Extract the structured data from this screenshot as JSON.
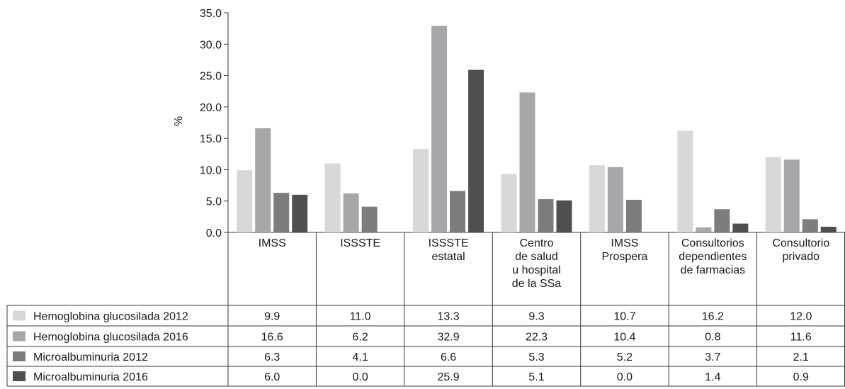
{
  "chart_data": {
    "type": "bar",
    "ylabel": "%",
    "ylim": [
      0,
      35
    ],
    "yticks": [
      "0.0",
      "5.0",
      "10.0",
      "15.0",
      "20.0",
      "25.0",
      "30.0",
      "35.0"
    ],
    "grid": false,
    "legend": "data-table",
    "categories": [
      [
        "IMSS"
      ],
      [
        "ISSSTE"
      ],
      [
        "ISSSTE",
        "estatal"
      ],
      [
        "Centro",
        "de salud",
        "u hospital",
        "de la SSa"
      ],
      [
        "IMSS",
        "Prospera"
      ],
      [
        "Consultorios",
        "dependientes",
        "de farmacias"
      ],
      [
        "Consultorio",
        "privado"
      ]
    ],
    "series": [
      {
        "name": "Hemoglobina glucosilada 2012",
        "color": "#d8d8d8",
        "values": [
          9.9,
          11.0,
          13.3,
          9.3,
          10.7,
          16.2,
          12.0
        ],
        "labels": [
          "9.9",
          "11.0",
          "13.3",
          "9.3",
          "10.7",
          "16.2",
          "12.0"
        ]
      },
      {
        "name": "Hemoglobina glucosilada 2016",
        "color": "#a7a7a9",
        "values": [
          16.6,
          6.2,
          32.9,
          22.3,
          10.4,
          0.8,
          11.6
        ],
        "labels": [
          "16.6",
          "6.2",
          "32.9",
          "22.3",
          "10.4",
          "0.8",
          "11.6"
        ]
      },
      {
        "name": "Microalbuminuria 2012",
        "color": "#7d7d80",
        "values": [
          6.3,
          4.1,
          6.6,
          5.3,
          5.2,
          3.7,
          2.1
        ],
        "labels": [
          "6.3",
          "4.1",
          "6.6",
          "5.3",
          "5.2",
          "3.7",
          "2.1"
        ]
      },
      {
        "name": "Microalbuminuria 2016",
        "color": "#4f4f52",
        "values": [
          6.0,
          0.0,
          25.9,
          5.1,
          0.0,
          1.4,
          0.9
        ],
        "labels": [
          "6.0",
          "0.0",
          "25.9",
          "5.1",
          "0.0",
          "1.4",
          "0.9"
        ]
      }
    ]
  }
}
